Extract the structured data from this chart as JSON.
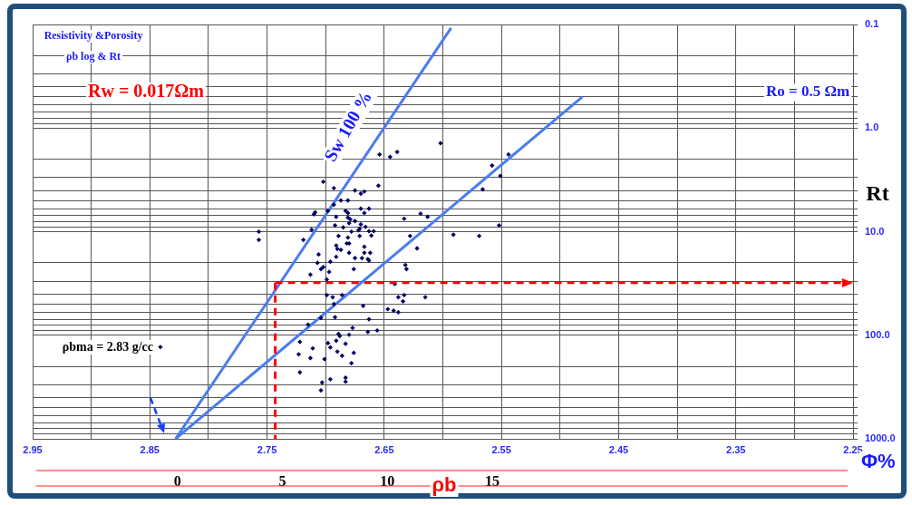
{
  "chart_data": {
    "type": "scatter",
    "title": "Resistivity &Porosity",
    "subtitle": "ρb log & Rt",
    "xlabel": "ρb",
    "x2label": "Φ%",
    "ylabel": "Rt",
    "annotations": [
      "Rw = 0.017Ωm",
      "Ro = 0.5 Ωm",
      "Sw 100 %",
      "ρbma = 2.83 g/cc"
    ],
    "xlim": [
      2.95,
      2.25
    ],
    "xticks": [
      2.95,
      {
        "value": 2.9,
        "label": null
      },
      2.85,
      {
        "value": 2.8,
        "label": null
      },
      2.75,
      {
        "value": 2.7,
        "label": null
      },
      2.65,
      {
        "value": 2.6,
        "label": null
      },
      2.55,
      {
        "value": 2.5,
        "label": null
      },
      2.45,
      {
        "value": 2.4,
        "label": null
      },
      2.35,
      {
        "value": 2.3,
        "label": null
      },
      2.25
    ],
    "x2lim": [
      -6.9,
      32.2
    ],
    "x2ticks": [
      0,
      5,
      10,
      15
    ],
    "ylim": [
      1000,
      0.1
    ],
    "yticks": [
      {
        "value": 0.1,
        "label": "0.1"
      },
      {
        "value": 0.2,
        "label": null
      },
      {
        "value": 0.3,
        "label": null
      },
      {
        "value": 0.4,
        "label": null
      },
      {
        "value": 0.5,
        "label": null
      },
      {
        "value": 0.6,
        "label": null
      },
      {
        "value": 0.7,
        "label": null
      },
      {
        "value": 0.8,
        "label": null
      },
      {
        "value": 0.9,
        "label": null
      },
      {
        "value": 1,
        "label": "1.0"
      },
      {
        "value": 2,
        "label": null
      },
      {
        "value": 3,
        "label": null
      },
      {
        "value": 4,
        "label": null
      },
      {
        "value": 5,
        "label": null
      },
      {
        "value": 6,
        "label": null
      },
      {
        "value": 7,
        "label": null
      },
      {
        "value": 8,
        "label": null
      },
      {
        "value": 9,
        "label": null
      },
      {
        "value": 10,
        "label": "10.0"
      },
      {
        "value": 20,
        "label": null
      },
      {
        "value": 30,
        "label": null
      },
      {
        "value": 40,
        "label": null
      },
      {
        "value": 50,
        "label": null
      },
      {
        "value": 60,
        "label": null
      },
      {
        "value": 70,
        "label": null
      },
      {
        "value": 80,
        "label": null
      },
      {
        "value": 90,
        "label": null
      },
      {
        "value": 100,
        "label": "100.0"
      },
      {
        "value": 200,
        "label": null
      },
      {
        "value": 300,
        "label": null
      },
      {
        "value": 400,
        "label": null
      },
      {
        "value": 500,
        "label": null
      },
      {
        "value": 600,
        "label": null
      },
      {
        "value": 700,
        "label": null
      },
      {
        "value": 800,
        "label": null
      },
      {
        "value": 900,
        "label": null
      },
      {
        "value": 1000,
        "label": "1000.0"
      }
    ],
    "log": "y",
    "grid": true,
    "legend": false,
    "marker": "diamond",
    "line_style": "solid",
    "ref_lines": [
      {
        "axis": "y",
        "value": 31,
        "color": "#ff0000",
        "line_style": "dashed"
      },
      {
        "axis": "x",
        "value": 2.743,
        "color": "#ff0000",
        "line_style": "dashed"
      }
    ],
    "series": [
      {
        "color": "#000066",
        "x": [
          2.602,
          2.654,
          2.645,
          2.639,
          2.544,
          2.558,
          2.551,
          2.566,
          2.702,
          2.693,
          2.675,
          2.667,
          2.67,
          2.655,
          2.687,
          2.681,
          2.693,
          2.698,
          2.709,
          2.71,
          2.683,
          2.681,
          2.67,
          2.663,
          2.667,
          2.691,
          2.681,
          2.679,
          2.675,
          2.692,
          2.685,
          2.68,
          2.67,
          2.671,
          2.672,
          2.666,
          2.659,
          2.663,
          2.678,
          2.712,
          2.719,
          2.689,
          2.681,
          2.671,
          2.661,
          2.68,
          2.682,
          2.691,
          2.69,
          2.687,
          2.667,
          2.667,
          2.662,
          2.675,
          2.68,
          2.691,
          2.669,
          2.664,
          2.663,
          2.706,
          2.696,
          2.707,
          2.702,
          2.704,
          2.697,
          2.713,
          2.676,
          2.699,
          2.633,
          2.619,
          2.613,
          2.628,
          2.622,
          2.591,
          2.569,
          2.552,
          2.632,
          2.631,
          2.757,
          2.757,
          2.641,
          2.699,
          2.694,
          2.686,
          2.693,
          2.633,
          2.638,
          2.634,
          2.615,
          2.668,
          2.647,
          2.642,
          2.638,
          2.692,
          2.704,
          2.663,
          2.715,
          2.677,
          2.664,
          2.656,
          2.68,
          2.689,
          2.688,
          2.691,
          2.722,
          2.698,
          2.711,
          2.696,
          2.683,
          2.69,
          2.686,
          2.676,
          2.723,
          2.713,
          2.701,
          2.678,
          2.722,
          2.696,
          2.683,
          2.683,
          2.703,
          2.704,
          2.841
        ],
        "values": [
          1.4,
          1.8,
          1.9,
          1.7,
          1.8,
          2.3,
          2.9,
          3.9,
          3.3,
          3.8,
          4.0,
          4.1,
          4.3,
          3.6,
          5.0,
          5.0,
          5.5,
          6.3,
          6.5,
          6.8,
          6.3,
          6.6,
          6.0,
          6.0,
          6.6,
          7.2,
          7.3,
          7.6,
          7.9,
          8.7,
          9.1,
          8.3,
          8.5,
          9.4,
          9.7,
          9.0,
          9.9,
          9.9,
          10,
          9.6,
          12,
          11,
          11.4,
          11,
          10.9,
          13,
          13,
          13.6,
          14.7,
          15,
          14,
          16,
          16,
          18,
          16,
          17.5,
          18,
          18.4,
          19,
          16.6,
          19.5,
          20,
          22,
          23,
          24.5,
          26,
          23,
          29,
          7.5,
          6.7,
          7.2,
          11,
          14.5,
          10.7,
          11,
          8.7,
          21,
          23,
          10,
          12,
          32,
          41,
          43,
          41,
          50,
          41,
          43,
          47,
          43,
          52,
          56,
          58,
          60,
          67,
          68,
          70,
          79,
          85,
          93,
          90,
          99,
          97,
          102,
          113,
          116,
          119,
          134,
          131,
          121,
          144,
          158,
          148,
          153,
          166,
          170,
          186,
          228,
          266,
          257,
          281,
          286,
          341,
          130
        ]
      },
      {
        "type": "line",
        "color": "#4a7cf0",
        "marker": "none",
        "x": [
          2.828,
          2.593
        ],
        "values": [
          1000,
          0.108
        ]
      },
      {
        "type": "line",
        "color": "#4a7cf0",
        "marker": "none",
        "x": [
          2.828,
          2.481
        ],
        "values": [
          1000,
          0.5
        ]
      }
    ]
  }
}
